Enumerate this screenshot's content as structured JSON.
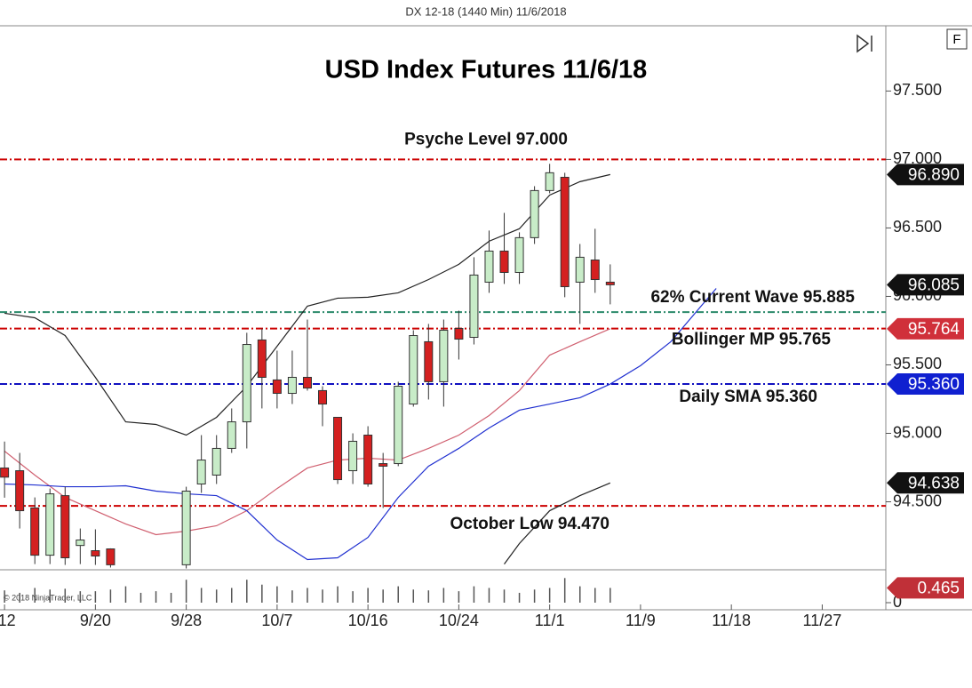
{
  "header": "DX 12-18 (1440 Min)  11/6/2018",
  "copyright": "© 2018 NinjaTrader, LLC",
  "button": "F",
  "chart_data": {
    "type": "candlestick",
    "title": "USD Index Futures 11/6/18",
    "x": [
      0,
      1,
      2,
      3,
      4,
      5,
      6,
      7,
      12,
      13,
      14,
      15,
      16,
      17,
      18,
      19,
      20,
      21,
      22,
      23,
      24,
      25,
      26,
      27,
      28,
      29,
      30,
      31,
      32,
      33,
      34,
      35,
      36,
      37,
      38,
      39,
      40
    ],
    "open": [
      94.747,
      94.727,
      94.455,
      94.11,
      94.545,
      94.181,
      94.143,
      94.156,
      94.04,
      94.63,
      94.695,
      94.89,
      95.084,
      95.682,
      95.39,
      95.292,
      95.409,
      95.312,
      95.117,
      94.727,
      94.987,
      94.779,
      94.779,
      95.214,
      95.669,
      95.377,
      95.766,
      95.701,
      96.104,
      96.331,
      96.175,
      96.429,
      96.773,
      96.87,
      96.104,
      96.266,
      96.104
    ],
    "high": [
      94.94,
      94.857,
      94.532,
      94.597,
      94.61,
      94.305,
      94.299,
      94.16,
      94.61,
      94.987,
      94.987,
      95.182,
      95.734,
      95.766,
      95.604,
      95.604,
      95.831,
      95.344,
      95.117,
      95.0,
      95.052,
      94.857,
      95.377,
      95.753,
      95.799,
      95.831,
      95.896,
      96.286,
      96.481,
      96.61,
      96.468,
      96.805,
      96.968,
      96.903,
      96.383,
      96.494,
      96.234
    ],
    "low": [
      94.53,
      94.305,
      94.045,
      94.045,
      94.039,
      94.045,
      94.039,
      94.02,
      94.013,
      94.565,
      94.63,
      94.857,
      94.89,
      95.182,
      95.182,
      95.214,
      95.312,
      95.052,
      94.63,
      94.63,
      94.61,
      94.455,
      94.76,
      95.195,
      95.247,
      95.195,
      95.539,
      95.649,
      96.026,
      96.091,
      96.091,
      96.383,
      96.753,
      95.994,
      95.799,
      96.026,
      95.942
    ],
    "close": [
      94.68,
      94.435,
      94.11,
      94.558,
      94.091,
      94.221,
      94.104,
      94.04,
      94.578,
      94.805,
      94.89,
      95.084,
      95.649,
      95.409,
      95.292,
      95.409,
      95.331,
      95.214,
      94.662,
      94.942,
      94.63,
      94.76,
      95.344,
      95.714,
      95.377,
      95.753,
      95.688,
      96.156,
      96.331,
      96.175,
      96.429,
      96.773,
      96.903,
      96.071,
      96.286,
      96.123,
      96.085
    ],
    "up_color": "#c8ecc8",
    "down_color": "#d42020",
    "lines": [
      {
        "color": "#222222",
        "x": [
          0,
          2,
          4,
          6,
          8,
          10,
          12,
          14,
          16,
          18,
          20,
          22,
          24,
          26,
          28,
          30,
          32,
          34,
          36,
          38,
          40
        ],
        "values": [
          95.877,
          95.844,
          95.714,
          95.409,
          95.084,
          95.065,
          94.987,
          95.117,
          95.344,
          95.636,
          95.929,
          95.987,
          95.994,
          96.026,
          96.123,
          96.234,
          96.403,
          96.494,
          96.74,
          96.838,
          96.89
        ]
      },
      {
        "color": "#d06070",
        "x": [
          0,
          2,
          4,
          6,
          8,
          10,
          12,
          14,
          16,
          18,
          20,
          22,
          24,
          26,
          28,
          30,
          32,
          34,
          36,
          38,
          40
        ],
        "values": [
          94.87,
          94.695,
          94.532,
          94.435,
          94.338,
          94.26,
          94.286,
          94.325,
          94.435,
          94.597,
          94.747,
          94.805,
          94.818,
          94.805,
          94.89,
          94.987,
          95.13,
          95.312,
          95.571,
          95.669,
          95.764
        ]
      },
      {
        "color": "#2030d0",
        "x": [
          0,
          2,
          4,
          6,
          8,
          10,
          12,
          14,
          16,
          18,
          20,
          22,
          24,
          26,
          28,
          30,
          32,
          34,
          36,
          38,
          40,
          42,
          44,
          46,
          47
        ],
        "values": [
          94.63,
          94.623,
          94.61,
          94.61,
          94.617,
          94.578,
          94.558,
          94.545,
          94.435,
          94.221,
          94.078,
          94.091,
          94.24,
          94.532,
          94.76,
          94.89,
          95.039,
          95.169,
          95.214,
          95.26,
          95.36,
          95.494,
          95.669,
          95.929,
          96.058
        ]
      },
      {
        "color": "#222222",
        "x": [
          33,
          34,
          36,
          38,
          40
        ],
        "values": [
          94.045,
          94.195,
          94.435,
          94.545,
          94.638
        ]
      }
    ],
    "levels": [
      {
        "label": "Psyche Level 97.000",
        "value": 97,
        "color": "#cc0000"
      },
      {
        "label": "62% Current Wave 95.885",
        "value": 95.885,
        "color": "#2a8a6a"
      },
      {
        "label": "Bollinger MP 95.765",
        "value": 95.765,
        "color": "#cc0000"
      },
      {
        "label": "Daily SMA 95.360",
        "value": 95.36,
        "color": "#1010c0"
      },
      {
        "label": "October Low 94.470",
        "value": 94.47,
        "color": "#cc0000"
      }
    ],
    "price_tags": [
      {
        "value": 96.89,
        "label": "96.890",
        "color": "#111111"
      },
      {
        "value": 96.085,
        "label": "96.085",
        "color": "#111111"
      },
      {
        "value": 95.764,
        "label": "95.764",
        "color": "#d0303a"
      },
      {
        "value": 95.36,
        "label": "95.360",
        "color": "#1020d0"
      },
      {
        "value": 94.638,
        "label": "94.638",
        "color": "#111111"
      }
    ],
    "ylim": [
      94.01,
      97.97
    ],
    "yticks": [
      {
        "value": 94.5,
        "label": "94.500"
      },
      {
        "value": 95,
        "label": "95.000"
      },
      {
        "value": 95.5,
        "label": "95.500"
      },
      {
        "value": 96,
        "label": "96.000"
      },
      {
        "value": 96.5,
        "label": "96.500"
      },
      {
        "value": 97,
        "label": "97.000"
      },
      {
        "value": 97.5,
        "label": "97.500"
      }
    ],
    "xlim": [
      -0.3,
      58.2
    ],
    "xticks": [
      {
        "value": 0,
        "label": "/12"
      },
      {
        "value": 6,
        "label": "9/20"
      },
      {
        "value": 12,
        "label": "9/28"
      },
      {
        "value": 18,
        "label": "10/7"
      },
      {
        "value": 24,
        "label": "10/16"
      },
      {
        "value": 30,
        "label": "10/24"
      },
      {
        "value": 36,
        "label": "11/1"
      },
      {
        "value": 42,
        "label": "11/9"
      },
      {
        "value": 48,
        "label": "11/18"
      },
      {
        "value": 54,
        "label": "11/27"
      }
    ],
    "volume": {
      "x": [
        0,
        1,
        2,
        3,
        4,
        5,
        6,
        7,
        8,
        9,
        10,
        11,
        12,
        13,
        14,
        15,
        16,
        17,
        18,
        19,
        20,
        21,
        22,
        23,
        24,
        25,
        26,
        27,
        28,
        29,
        30,
        31,
        32,
        33,
        34,
        35,
        36,
        37,
        38,
        39,
        40
      ],
      "values": [
        0.387,
        0.31,
        0.464,
        0.413,
        0.439,
        0.361,
        0.361,
        0.413,
        0.516,
        0.31,
        0.361,
        0.31,
        0.723,
        0.464,
        0.413,
        0.464,
        0.723,
        0.568,
        0.516,
        0.387,
        0.464,
        0.413,
        0.516,
        0.361,
        0.464,
        0.413,
        0.516,
        0.413,
        0.387,
        0.464,
        0.361,
        0.516,
        0.464,
        0.413,
        0.31,
        0.413,
        0.464,
        0.775,
        0.516,
        0.464,
        0.465
      ],
      "ylim": [
        0,
        0.98
      ],
      "yticks": [
        0
      ],
      "tag": {
        "value": 0.465,
        "label": "0.465",
        "color": "#c03038"
      },
      "color": "#555555"
    }
  }
}
